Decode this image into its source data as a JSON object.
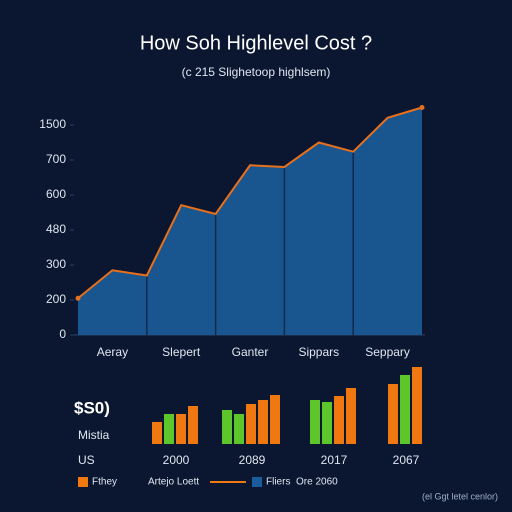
{
  "chart_data": [
    {
      "type": "area",
      "title": "How Soh Highlevel Cost ?",
      "subtitle": "(c 215 Slighetoop highlsem)",
      "categories": [
        null,
        "Aeray",
        null,
        "Slepert",
        null,
        "Ganter",
        null,
        "Sippars",
        null,
        "Seppary",
        null
      ],
      "values": [
        205,
        285,
        270,
        565,
        535,
        685,
        680,
        1100,
        890,
        1665,
        1900
      ],
      "color": "#1b5c9a",
      "line_color": "#e8701a",
      "ylim": [
        0,
        1900
      ],
      "yticks": [
        0,
        200,
        300,
        480,
        600,
        700,
        1500
      ]
    },
    {
      "type": "grouped_bar",
      "side_labels": [
        "$S0)",
        "Mistia",
        "US"
      ],
      "groups": [
        {
          "label": "2000",
          "values": [
            22,
            30,
            30,
            38
          ],
          "colors": [
            "#f07810",
            "#5cc62a",
            "#f07810",
            "#f07810"
          ]
        },
        {
          "label": "2089",
          "values": [
            34,
            30,
            40,
            44,
            49
          ],
          "colors": [
            "#5cc62a",
            "#5cc62a",
            "#f07810",
            "#f07810",
            "#f07810"
          ]
        },
        {
          "label": "2017",
          "values": [
            44,
            42,
            48,
            56
          ],
          "colors": [
            "#5cc62a",
            "#5cc62a",
            "#f07810",
            "#f07810"
          ]
        },
        {
          "label": "2067",
          "values": [
            60,
            69,
            77
          ],
          "colors": [
            "#f07810",
            "#5cc62a",
            "#f07810"
          ]
        }
      ]
    }
  ],
  "legend": [
    {
      "label": "Fthey",
      "kind": "square",
      "color": "#f07810"
    },
    {
      "label": "Artejo Loett",
      "kind": "line",
      "color": "#f07810"
    },
    {
      "label": "Fliers",
      "kind": "square",
      "color": "#1b5c9a"
    },
    {
      "label": "Ore 2060",
      "kind": "none",
      "color": "#cfd8e6"
    }
  ],
  "footnote": "(el Ggt letel cenlor)"
}
